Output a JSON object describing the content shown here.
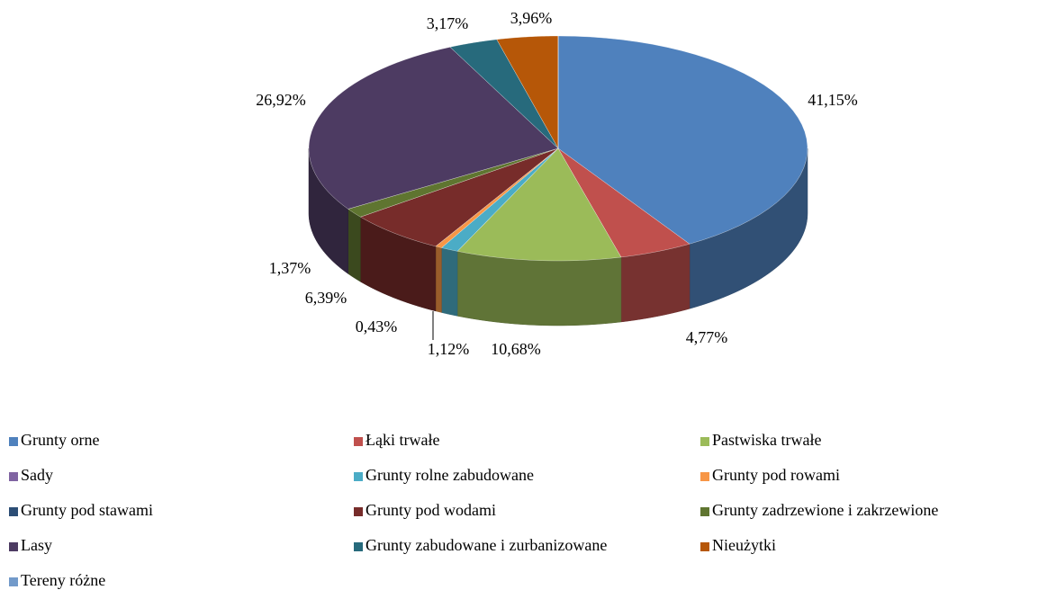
{
  "chart_data": {
    "type": "pie",
    "categories": [
      "Grunty orne",
      "Łąki trwałe",
      "Pastwiska trwałe",
      "Sady",
      "Grunty rolne zabudowane",
      "Grunty pod rowami",
      "Grunty pod stawami",
      "Grunty pod wodami",
      "Grunty zadrzewione i zakrzewione",
      "Lasy",
      "Grunty zabudowane i zurbanizowane",
      "Nieużytki",
      "Tereny różne"
    ],
    "values": [
      41.15,
      4.77,
      10.68,
      0,
      1.12,
      0.43,
      0,
      6.39,
      1.37,
      26.92,
      3.17,
      3.96,
      0
    ],
    "value_labels": [
      "41,15%",
      "4,77%",
      "10,68%",
      null,
      "1,12%",
      "0,43%",
      null,
      "6,39%",
      "1,37%",
      "26,92%",
      "3,17%",
      "3,96%",
      null
    ],
    "colors": [
      "#4f81bd",
      "#c0504d",
      "#9bbb59",
      "#8064a2",
      "#4bacc6",
      "#f79646",
      "#2c4d75",
      "#772c2a",
      "#5f7530",
      "#4d3b62",
      "#276a7c",
      "#b65708",
      "#729aca"
    ],
    "legend": "bottom"
  }
}
